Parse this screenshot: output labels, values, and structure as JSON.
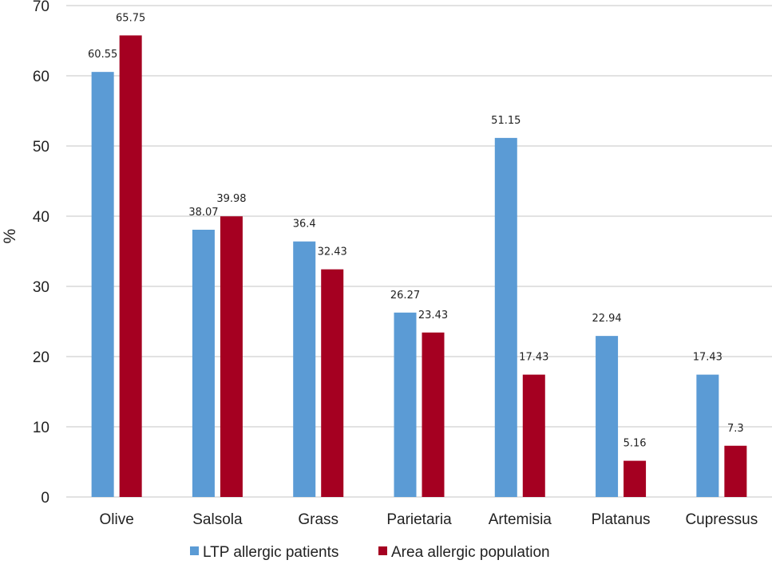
{
  "chart_data": {
    "type": "bar",
    "title": "",
    "xlabel": "",
    "ylabel": "%",
    "ylim": [
      0,
      70
    ],
    "yticks": [
      0,
      10,
      20,
      30,
      40,
      50,
      60,
      70
    ],
    "grid": true,
    "categories": [
      "Olive",
      "Salsola",
      "Grass",
      "Parietaria",
      "Artemisia",
      "Platanus",
      "Cupressus"
    ],
    "series": [
      {
        "name": "LTP allergic patients",
        "color": "#5b9bd5",
        "values": [
          60.55,
          38.07,
          36.4,
          26.27,
          51.15,
          22.94,
          17.43
        ],
        "labels": [
          "60.55",
          "38.07",
          "36.4",
          "26.27",
          "51.15",
          "22.94",
          "17.43"
        ]
      },
      {
        "name": "Area allergic population",
        "color": "#a50021",
        "values": [
          65.75,
          39.98,
          32.43,
          23.43,
          17.43,
          5.16,
          7.3
        ],
        "labels": [
          "65.75",
          "39.98",
          "32.43",
          "23.43",
          "17.43",
          "5.16",
          "7.3"
        ]
      }
    ],
    "legend_position": "bottom"
  }
}
